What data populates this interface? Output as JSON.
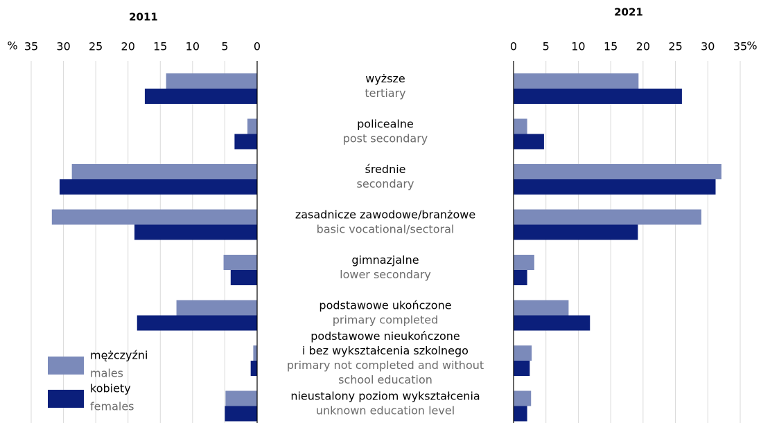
{
  "chart_data": {
    "type": "bar",
    "orientation": "horizontal",
    "x_unit": "%",
    "categories": [
      {
        "pl": [
          "wyższe"
        ],
        "en": [
          "tertiary"
        ]
      },
      {
        "pl": [
          "policealne"
        ],
        "en": [
          "post secondary"
        ]
      },
      {
        "pl": [
          "średnie"
        ],
        "en": [
          "secondary"
        ]
      },
      {
        "pl": [
          "zasadnicze zawodowe/branżowe"
        ],
        "en": [
          "basic vocational/sectoral"
        ]
      },
      {
        "pl": [
          "gimnazjalne"
        ],
        "en": [
          "lower secondary"
        ]
      },
      {
        "pl": [
          "podstawowe ukończone"
        ],
        "en": [
          "primary completed"
        ]
      },
      {
        "pl": [
          "podstawowe nieukończone",
          "i bez wykształcenia szkolnego"
        ],
        "en": [
          "primary not completed and without",
          "school education"
        ]
      },
      {
        "pl": [
          "nieustalony poziom wykształcenia"
        ],
        "en": [
          "unknown education level"
        ]
      }
    ],
    "panels": [
      {
        "title": "2011",
        "side": "left",
        "xlim": [
          0,
          35
        ],
        "xticks": [
          0,
          5,
          10,
          15,
          20,
          25,
          30,
          35
        ]
      },
      {
        "title": "2021",
        "side": "right",
        "xlim": [
          0,
          35
        ],
        "xticks": [
          0,
          5,
          10,
          15,
          20,
          25,
          30,
          35
        ]
      }
    ],
    "series": [
      {
        "name": "mężczyźni",
        "name_en": "males",
        "color": "#7b8aba",
        "values": [
          [
            14.1,
            1.5,
            28.7,
            31.8,
            5.2,
            12.5,
            0.6,
            4.9
          ],
          [
            19.3,
            2.1,
            32.1,
            29.0,
            3.2,
            8.5,
            2.8,
            2.7
          ]
        ]
      },
      {
        "name": "kobiety",
        "name_en": "females",
        "color": "#0b1f7b",
        "values": [
          [
            17.4,
            3.5,
            30.6,
            19.0,
            4.1,
            18.6,
            1.0,
            5.0
          ],
          [
            26.0,
            4.7,
            31.2,
            19.2,
            2.1,
            11.8,
            2.5,
            2.1
          ]
        ]
      }
    ],
    "grid": true,
    "legend": "lower left"
  }
}
